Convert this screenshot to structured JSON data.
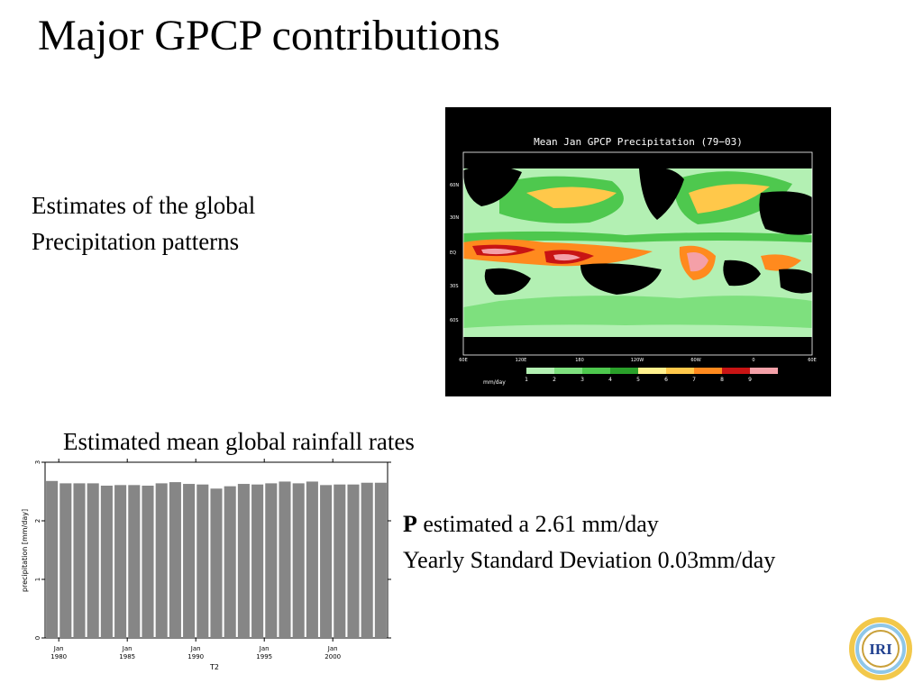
{
  "slide": {
    "title": "Major GPCP contributions",
    "text1_line1": "Estimates of the global",
    "text1_line2": "Precipitation patterns",
    "text2": "Estimated mean global rainfall rates",
    "stat_symbol": "P",
    "stat_line1_rest": " estimated a 2.61 mm/day",
    "stat_line2": "Yearly Standard Deviation 0.03mm/day",
    "logo_text": "IRI"
  },
  "map": {
    "title": "Mean Jan GPCP Precipitation (79−03)",
    "lat_labels": [
      "60N",
      "30N",
      "EQ",
      "30S",
      "60S"
    ],
    "lon_labels": [
      "60E",
      "120E",
      "180",
      "120W",
      "60W",
      "0",
      "60E"
    ],
    "colorbar_label": "mm/day",
    "colorbar_ticks": [
      "1",
      "2",
      "3",
      "4",
      "5",
      "6",
      "7",
      "8",
      "9"
    ],
    "colorbar_colors": [
      "#b3f0b3",
      "#7ee07e",
      "#4ec84e",
      "#2aa02a",
      "#fff08c",
      "#ffc84a",
      "#ff8a1e",
      "#c81414",
      "#f4a0a8"
    ]
  },
  "chart_data": {
    "type": "bar",
    "categories": [
      "1979",
      "1980",
      "1981",
      "1982",
      "1983",
      "1984",
      "1985",
      "1986",
      "1987",
      "1988",
      "1989",
      "1990",
      "1991",
      "1992",
      "1993",
      "1994",
      "1995",
      "1996",
      "1997",
      "1998",
      "1999",
      "2000",
      "2001",
      "2002",
      "2003"
    ],
    "values": [
      2.68,
      2.64,
      2.64,
      2.64,
      2.6,
      2.61,
      2.61,
      2.6,
      2.64,
      2.66,
      2.63,
      2.62,
      2.55,
      2.59,
      2.63,
      2.62,
      2.64,
      2.67,
      2.64,
      2.67,
      2.61,
      2.62,
      2.62,
      2.65,
      2.65
    ],
    "ylabel": "precipitation [mm/day]",
    "xlabel": "T2",
    "ylim": [
      0,
      3
    ],
    "yticks": [
      "0",
      "1",
      "2",
      "3"
    ],
    "xticks": [
      {
        "month": "Jan",
        "year": "1980"
      },
      {
        "month": "Jan",
        "year": "1985"
      },
      {
        "month": "Jan",
        "year": "1990"
      },
      {
        "month": "Jan",
        "year": "1995"
      },
      {
        "month": "Jan",
        "year": "2000"
      }
    ],
    "bar_color": "#868686"
  }
}
